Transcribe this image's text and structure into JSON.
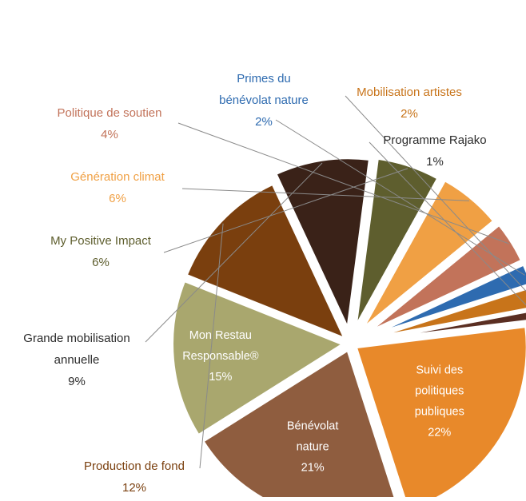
{
  "chart_data": {
    "type": "pie",
    "title": "",
    "categories": [
      "Suivi des politiques publiques",
      "Bénévolat nature",
      "Mon Restau Responsable®",
      "Production de fond",
      "Grande mobilisation annuelle",
      "My Positive Impact",
      "Génération climat",
      "Politique de soutien",
      "Primes du bénévolat nature",
      "Mobilisation artistes",
      "Programme Rajako"
    ],
    "values": [
      22,
      21,
      15,
      12,
      9,
      6,
      6,
      4,
      2,
      2,
      1
    ],
    "series": [
      {
        "name": "",
        "values": [
          22,
          21,
          15,
          12,
          9,
          6,
          6,
          4,
          2,
          2,
          1
        ]
      }
    ],
    "slices": [
      {
        "id": "suivi-politiques",
        "label_lines": [
          "Suivi des",
          "politiques",
          "publiques"
        ],
        "value_label": "22%",
        "value": 22,
        "color": "#E8892A",
        "label_color": "#ffffff",
        "label_position": "inside"
      },
      {
        "id": "benevolat-nature",
        "label_lines": [
          "Bénévolat",
          "nature"
        ],
        "value_label": "21%",
        "value": 21,
        "color": "#8F5D3F",
        "label_color": "#ffffff",
        "label_position": "inside"
      },
      {
        "id": "mon-restau",
        "label_lines": [
          "Mon Restau",
          "Responsable®"
        ],
        "value_label": "15%",
        "value": 15,
        "color": "#A9A76E",
        "label_color": "#ffffff",
        "label_position": "inside"
      },
      {
        "id": "production-fond",
        "label_lines": [
          "Production de fond"
        ],
        "value_label": "12%",
        "value": 12,
        "color": "#7A3F0E",
        "label_color": "#7A3F0E",
        "label_position": "outside"
      },
      {
        "id": "grande-mobilisation",
        "label_lines": [
          "Grande mobilisation",
          "annuelle"
        ],
        "value_label": "9%",
        "value": 9,
        "color": "#3A2218",
        "label_color": "#2b2b2b",
        "label_position": "outside"
      },
      {
        "id": "my-positive-impact",
        "label_lines": [
          "My Positive Impact"
        ],
        "value_label": "6%",
        "value": 6,
        "color": "#5E5E2E",
        "label_color": "#5E5E2E",
        "label_position": "outside"
      },
      {
        "id": "generation-climat",
        "label_lines": [
          "Génération climat"
        ],
        "value_label": "6%",
        "value": 6,
        "color": "#F0A044",
        "label_color": "#F0A044",
        "label_position": "outside"
      },
      {
        "id": "politique-soutien",
        "label_lines": [
          "Politique de soutien"
        ],
        "value_label": "4%",
        "value": 4,
        "color": "#C2735A",
        "label_color": "#C2735A",
        "label_position": "outside"
      },
      {
        "id": "primes-benevolat",
        "label_lines": [
          "Primes du",
          "bénévolat nature"
        ],
        "value_label": "2%",
        "value": 2,
        "color": "#2E6BB0",
        "label_color": "#2E6BB0",
        "label_position": "outside"
      },
      {
        "id": "mobilisation-artistes",
        "label_lines": [
          "Mobilisation artistes"
        ],
        "value_label": "2%",
        "value": 2,
        "color": "#C8741A",
        "label_color": "#C8741A",
        "label_position": "outside"
      },
      {
        "id": "programme-rajako",
        "label_lines": [
          "Programme Rajako"
        ],
        "value_label": "1%",
        "value": 1,
        "color": "#5A2E22",
        "label_color": "#2b2b2b",
        "label_position": "outside"
      }
    ],
    "legend": "none",
    "grid": false
  }
}
